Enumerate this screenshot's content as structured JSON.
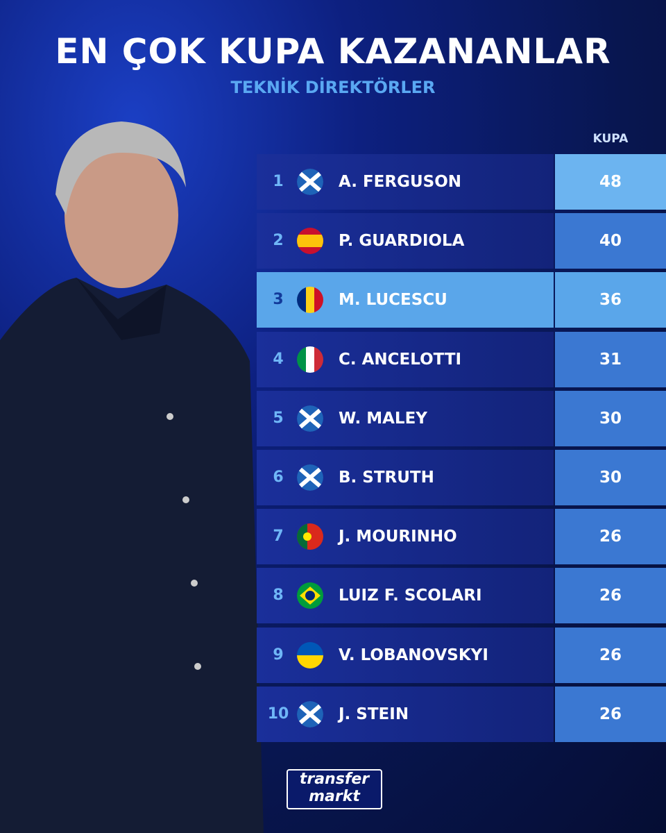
{
  "header": {
    "title": "EN ÇOK KUPA KAZANANLAR",
    "subtitle": "TEKNİK DİREKTÖRLER"
  },
  "table": {
    "column_header": "KUPA",
    "rows": [
      [
        "1",
        "A. FERGUSON",
        48
      ],
      [
        "2",
        "P. GUARDIOLA",
        40
      ],
      [
        "3",
        "M. LUCESCU",
        36
      ],
      [
        "4",
        "C. ANCELOTTI",
        31
      ],
      [
        "5",
        "W. MALEY",
        30
      ],
      [
        "6",
        "B. STRUTH",
        30
      ],
      [
        "7",
        "J. MOURINHO",
        26
      ],
      [
        "8",
        "LUIZ F. SCOLARI",
        26
      ],
      [
        "9",
        "V. LOBANOVSKYI",
        26
      ],
      [
        "10",
        "J. STEIN",
        26
      ]
    ]
  },
  "logo": {
    "line1": "transfer",
    "line2": "markt"
  }
}
